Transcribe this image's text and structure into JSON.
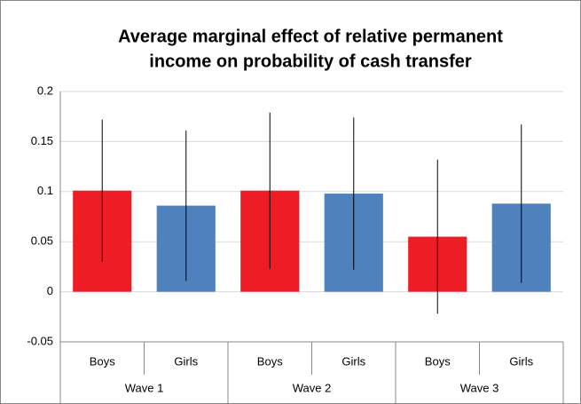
{
  "chart_data": {
    "type": "bar",
    "title": [
      "Average marginal effect of relative permanent",
      "income on probability of cash transfer"
    ],
    "categories": [
      "Boys",
      "Girls",
      "Boys",
      "Girls",
      "Boys",
      "Girls"
    ],
    "groups": [
      "Wave 1",
      "Wave 2",
      "Wave 3"
    ],
    "series": [
      {
        "values": [
          0.101,
          0.086,
          0.101,
          0.098,
          0.055,
          0.088
        ],
        "errors": [
          0.071,
          0.075,
          0.078,
          0.076,
          0.077,
          0.079
        ],
        "colors": [
          "#ee1c25",
          "#4f81bd",
          "#ee1c25",
          "#4f81bd",
          "#ee1c25",
          "#4f81bd"
        ]
      }
    ],
    "ylim": [
      -0.05,
      0.2
    ],
    "yticks": [
      -0.05,
      0,
      0.05,
      0.1,
      0.15,
      0.2
    ],
    "grid": true
  }
}
